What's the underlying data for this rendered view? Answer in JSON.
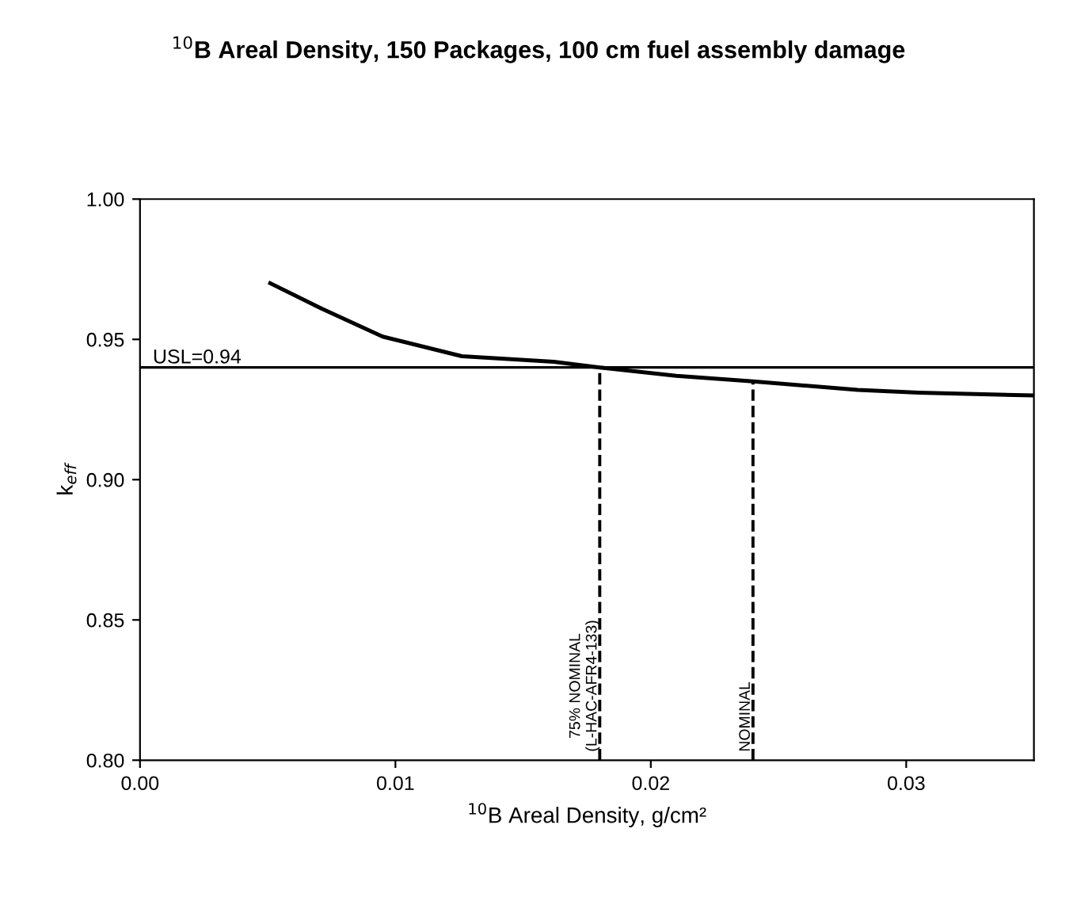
{
  "chart_data": {
    "type": "line",
    "title": "$^{10}$B Areal Density, 150 Packages, 100 cm fuel assembly damage",
    "xlabel": "$^{10}$B Areal Density, g/cm²",
    "ylabel": "k$_{eff}$",
    "x": [
      0.0051,
      0.0071,
      0.0095,
      0.0126,
      0.0162,
      0.018,
      0.021,
      0.024,
      0.0281,
      0.0305,
      0.035
    ],
    "series": [
      {
        "color": "#000000",
        "values": [
          0.97,
          0.961,
          0.951,
          0.944,
          0.942,
          0.94,
          0.937,
          0.935,
          0.932,
          0.931,
          0.93
        ]
      }
    ],
    "xlim": [
      0,
      0.035
    ],
    "ylim": [
      0.8,
      1.0
    ],
    "xticks": [
      {
        "value": 0,
        "label": "0.00"
      },
      {
        "value": 0.01,
        "label": "0.01"
      },
      {
        "value": 0.02,
        "label": "0.02"
      },
      {
        "value": 0.03,
        "label": "0.03"
      }
    ],
    "yticks": [
      {
        "value": 0.8,
        "label": "0.80"
      },
      {
        "value": 0.85,
        "label": "0.85"
      },
      {
        "value": 0.9,
        "label": "0.90"
      },
      {
        "value": 0.95,
        "label": "0.95"
      },
      {
        "value": 1.0,
        "label": "1.00"
      }
    ],
    "ref_lines": [
      {
        "axis": "y",
        "value": 0.94,
        "label": "USL=0.94",
        "color": "#000000",
        "line_style": "solid"
      },
      {
        "axis": "x",
        "value": 0.018,
        "label": "75% NOMINAL\n(L-HAC-AFR4-133)",
        "color": "#000000",
        "line_style": "dashed"
      },
      {
        "axis": "x",
        "value": 0.024,
        "label": "NOMINAL",
        "color": "#000000",
        "line_style": "dashed"
      }
    ],
    "grid": false,
    "marker": "none",
    "line_style": "solid"
  }
}
